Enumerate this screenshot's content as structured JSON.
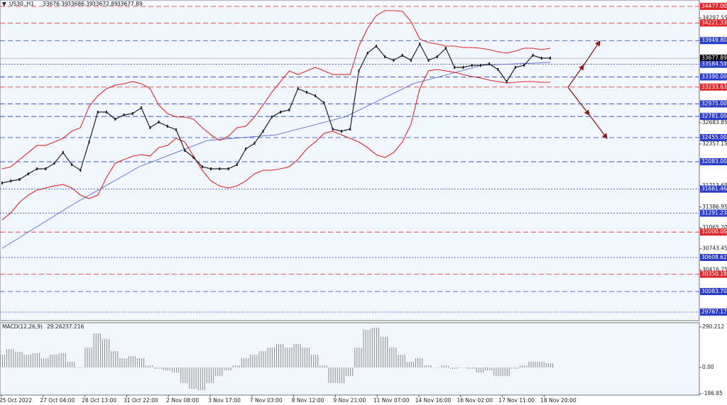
{
  "chart_data": [
    {
      "type": "line",
      "title": "US30.,H1",
      "ohlc": [
        33676.39,
        33686.39,
        33672.89,
        33677.89
      ],
      "color": "#202020",
      "band_color": "#e0262a",
      "ma_color": "#5a6ad8",
      "values": [
        31755,
        31788,
        31810,
        31897,
        31974,
        31974,
        32061,
        32225,
        32039,
        31952,
        32389,
        32848,
        32848,
        32739,
        32804,
        32826,
        32914,
        32608,
        32695,
        32629,
        32575,
        32258,
        32149,
        32006,
        31974,
        31974,
        31974,
        32039,
        32280,
        32367,
        32553,
        32772,
        32848,
        32881,
        33209,
        33154,
        33099,
        32990,
        32586,
        32553,
        32586,
        33482,
        33755,
        33865,
        33701,
        33646,
        33722,
        33646,
        33897,
        33646,
        33701,
        33832,
        33537,
        33537,
        33569,
        33569,
        33591,
        33504,
        33318,
        33537,
        33569,
        33722,
        33679,
        33679
      ],
      "upper_band": [
        31974,
        32006,
        32116,
        32225,
        32334,
        32334,
        32389,
        32444,
        32553,
        32608,
        32935,
        33099,
        33209,
        33263,
        33285,
        33318,
        33285,
        33209,
        32957,
        32826,
        32772,
        32772,
        32739,
        32608,
        32498,
        32411,
        32476,
        32608,
        32629,
        32772,
        32957,
        33154,
        33318,
        33482,
        33427,
        33482,
        33537,
        33482,
        33427,
        33427,
        33427,
        33865,
        34138,
        34335,
        34411,
        34411,
        34400,
        34247,
        33974,
        33919,
        33897,
        33865,
        33865,
        33843,
        33843,
        33832,
        33810,
        33777,
        33755,
        33788,
        33832,
        33832,
        33810,
        33832
      ],
      "lower_band": [
        31187,
        31296,
        31460,
        31569,
        31646,
        31679,
        31711,
        31733,
        31679,
        31569,
        31515,
        31569,
        31842,
        32061,
        32116,
        32170,
        32192,
        32170,
        32302,
        32334,
        32444,
        32389,
        32170,
        31952,
        31788,
        31711,
        31679,
        31711,
        31788,
        31897,
        31952,
        31952,
        31974,
        32006,
        32116,
        32280,
        32389,
        32520,
        32553,
        32498,
        32444,
        32389,
        32302,
        32192,
        32149,
        32225,
        32389,
        32662,
        33209,
        33482,
        33504,
        33482,
        33460,
        33427,
        33395,
        33373,
        33340,
        33318,
        33296,
        33307,
        33318,
        33318,
        33307,
        33307
      ],
      "moving_average": [
        30749,
        31405,
        32006,
        32411,
        32498,
        32772,
        33285,
        33569,
        33613
      ],
      "ylim": [
        29636,
        34575
      ],
      "yticks": [
        34297.55,
        32683.85,
        32357.15,
        31713.65,
        31386.95,
        {
          "value": 31065.2,
          "label": "31065.20"
        },
        30743.45,
        30416.75
      ],
      "levels": [
        {
          "value": 34477,
          "label": "34477.00",
          "color": "#e0262a",
          "style": "dash"
        },
        {
          "value": 34221.33,
          "label": "34221.33",
          "color": "#e0262a",
          "style": "dash"
        },
        {
          "value": 33949.8,
          "label": "33949.80",
          "color": "#2a3cc8",
          "style": "dash"
        },
        {
          "value": 33677.89,
          "label": "33677.89",
          "color": "#000000",
          "style": "solid"
        },
        {
          "value": 33584.59,
          "label": "33584.59",
          "color": "#2a3cc8",
          "style": "dot"
        },
        {
          "value": 33390,
          "label": "33390.00",
          "color": "#2a3cc8",
          "style": "dash"
        },
        {
          "value": 33233.63,
          "label": "33233.63",
          "color": "#e0262a",
          "style": "dash"
        },
        {
          "value": 32975,
          "label": "32975.00",
          "color": "#2a3cc8",
          "style": "dash"
        },
        {
          "value": 32781,
          "label": "32781.00",
          "color": "#2a3cc8",
          "style": "dash"
        },
        {
          "value": 32455,
          "label": "32455.00",
          "color": "#2a3cc8",
          "style": "dash"
        },
        {
          "value": 32083,
          "label": "32083.00",
          "color": "#2a3cc8",
          "style": "dash"
        },
        {
          "value": 31661.46,
          "label": "31661.46",
          "color": "#2a3cc8",
          "style": "dot"
        },
        {
          "value": 31291.23,
          "label": "31291.23",
          "color": "#2a3cc8",
          "style": "dot"
        },
        {
          "value": 31000,
          "label": "31000.00",
          "color": "#e0262a",
          "style": "dash"
        },
        {
          "value": 30608.62,
          "label": "30608.62",
          "color": "#2a3cc8",
          "style": "dot"
        },
        {
          "value": 30350.18,
          "label": "30350.18",
          "color": "#e0262a",
          "style": "dash"
        },
        {
          "value": 30083.7,
          "label": "30083.70",
          "color": "#2a3cc8",
          "style": "dash"
        },
        {
          "value": 29767.17,
          "label": "29767.17",
          "color": "#2a3cc8",
          "style": "dot"
        }
      ],
      "x_labels": [
        "25 Oct 2022",
        "27 Oct 04:00",
        "28 Oct 13:00",
        "31 Oct 22:00",
        "2 Nov 08:00",
        "3 Nov 17:00",
        "7 Nov 03:00",
        "8 Nov 12:00",
        "9 Nov 21:00",
        "11 Nov 07:00",
        "14 Nov 16:00",
        "16 Nov 02:00",
        "17 Nov 11:00",
        "18 Nov 20:00"
      ]
    },
    {
      "type": "histogram",
      "title": "MACD(12,26,9)",
      "readings": [
        29.262,
        37.216
      ],
      "color": "#8a8a8a",
      "values": [
        92,
        132,
        112,
        92,
        102,
        66,
        92,
        102,
        41,
        0,
        142,
        244,
        203,
        117,
        66,
        81,
        66,
        15,
        -10,
        -20,
        -36,
        -112,
        -153,
        -163,
        -112,
        -61,
        -20,
        15,
        66,
        92,
        117,
        142,
        168,
        142,
        168,
        142,
        92,
        15,
        -112,
        -112,
        -61,
        142,
        270,
        285,
        219,
        142,
        92,
        41,
        66,
        15,
        0,
        15,
        -10,
        0,
        -10,
        -36,
        -20,
        -61,
        -61,
        -10,
        15,
        41,
        41,
        31
      ],
      "ylim": [
        -197,
        320
      ],
      "yticks": [
        290.212,
        {
          "value": 0,
          "label": "0.00"
        },
        -186.85
      ]
    }
  ]
}
